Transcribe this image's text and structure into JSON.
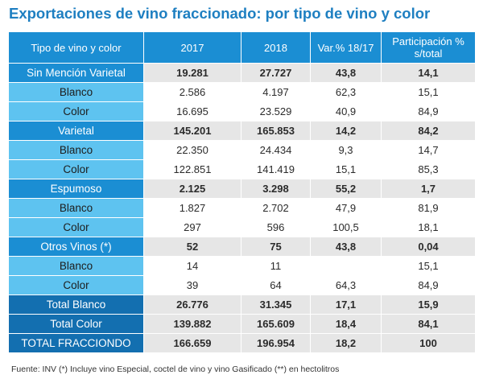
{
  "title": "Exportaciones de vino fraccionado: por tipo de vino y color",
  "headers": [
    "Tipo de vino y color",
    "2017",
    "2018",
    "Var.% 18/17",
    "Participación %\ns/total"
  ],
  "rows": [
    {
      "label": "Sin Mención Varietal",
      "y2017": "19.281",
      "y2018": "27.727",
      "var": "43,8",
      "part": "14,1"
    },
    {
      "label": "Blanco",
      "y2017": "2.586",
      "y2018": "4.197",
      "var": "62,3",
      "part": "15,1"
    },
    {
      "label": "Color",
      "y2017": "16.695",
      "y2018": "23.529",
      "var": "40,9",
      "part": "84,9"
    },
    {
      "label": "Varietal",
      "y2017": "145.201",
      "y2018": "165.853",
      "var": "14,2",
      "part": "84,2"
    },
    {
      "label": "Blanco",
      "y2017": "22.350",
      "y2018": "24.434",
      "var": "9,3",
      "part": "14,7"
    },
    {
      "label": "Color",
      "y2017": "122.851",
      "y2018": "141.419",
      "var": "15,1",
      "part": "85,3"
    },
    {
      "label": "Espumoso",
      "y2017": "2.125",
      "y2018": "3.298",
      "var": "55,2",
      "part": "1,7"
    },
    {
      "label": "Blanco",
      "y2017": "1.827",
      "y2018": "2.702",
      "var": "47,9",
      "part": "81,9"
    },
    {
      "label": "Color",
      "y2017": "297",
      "y2018": "596",
      "var": "100,5",
      "part": "18,1"
    },
    {
      "label": "Otros Vinos (*)",
      "y2017": "52",
      "y2018": "75",
      "var": "43,8",
      "part": "0,04"
    },
    {
      "label": "Blanco",
      "y2017": "14",
      "y2018": "11",
      "var": "",
      "part": "15,1"
    },
    {
      "label": "Color",
      "y2017": "39",
      "y2018": "64",
      "var": "64,3",
      "part": "84,9"
    },
    {
      "label": "Total Blanco",
      "y2017": "26.776",
      "y2018": "31.345",
      "var": "17,1",
      "part": "15,9"
    },
    {
      "label": "Total Color",
      "y2017": "139.882",
      "y2018": "165.609",
      "var": "18,4",
      "part": "84,1"
    },
    {
      "label": "TOTAL FRACCIONDO",
      "y2017": "166.659",
      "y2018": "196.954",
      "var": "18,2",
      "part": "100"
    }
  ],
  "source": "Fuente: INV (*) Incluye vino Especial, coctel de vino y vino Gasificado (**)  en hectolitros"
}
